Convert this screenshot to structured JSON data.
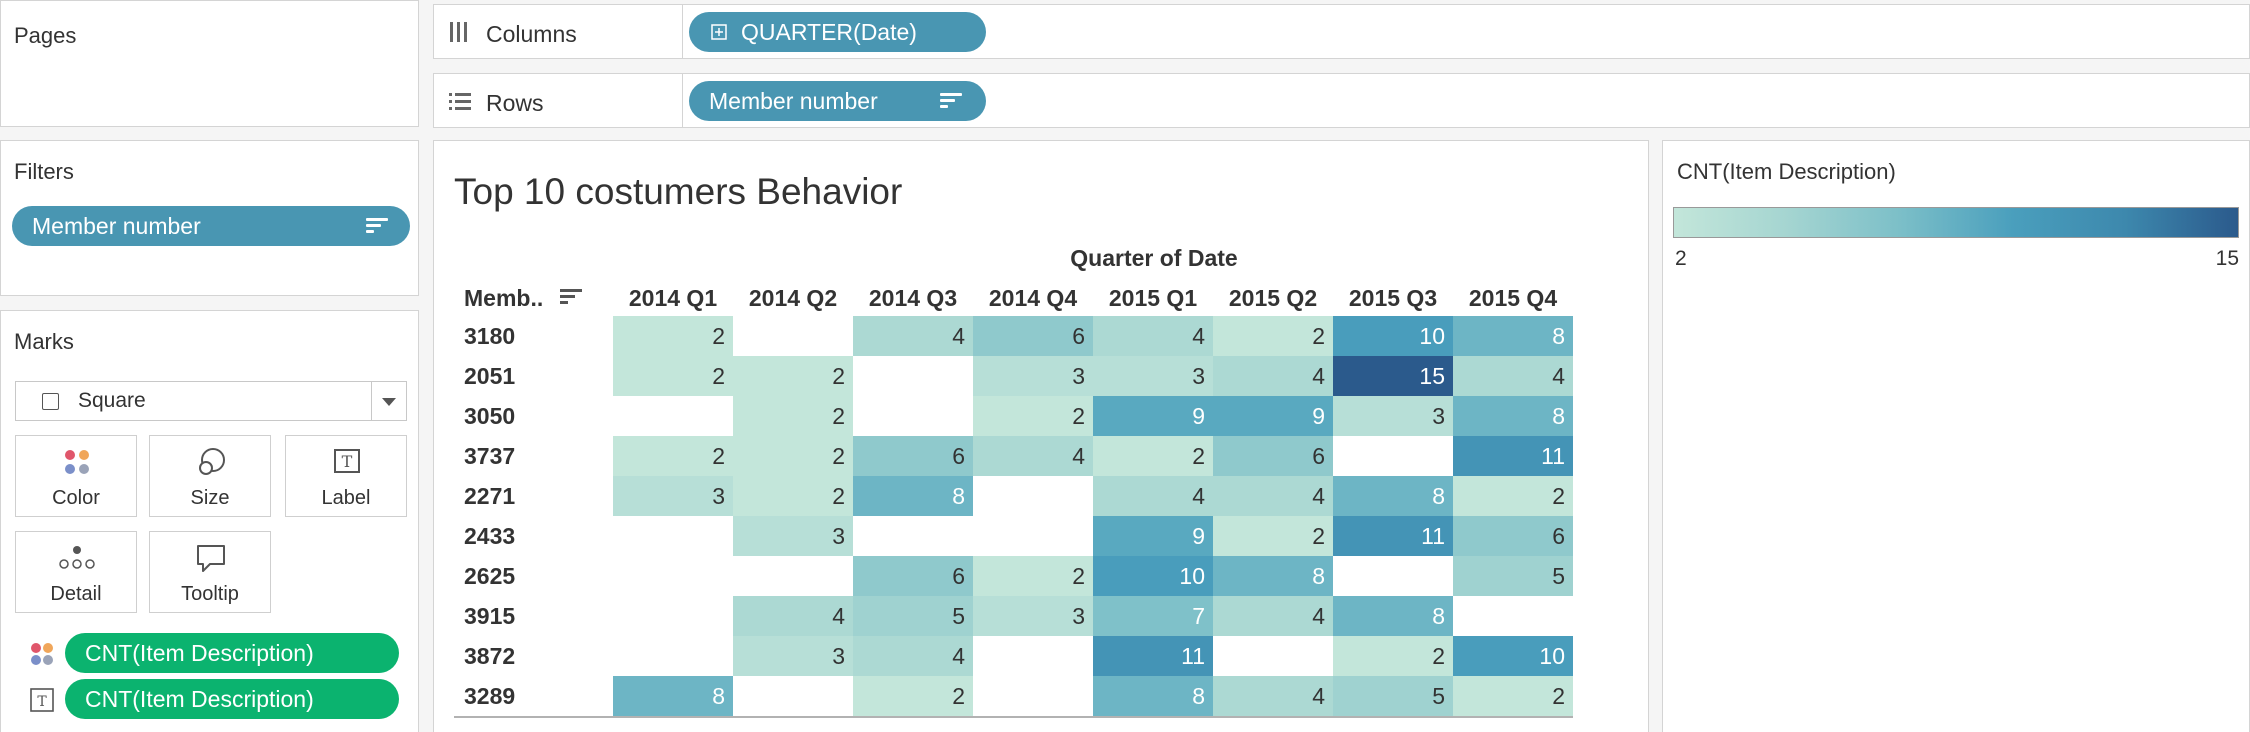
{
  "pages": {
    "title": "Pages"
  },
  "filters": {
    "title": "Filters",
    "pill": "Member number"
  },
  "marks": {
    "title": "Marks",
    "type": "Square",
    "buttons": {
      "color": "Color",
      "size": "Size",
      "label": "Label",
      "detail": "Detail",
      "tooltip": "Tooltip"
    },
    "fields": [
      {
        "label": "CNT(Item Description)",
        "icon": "color-icon"
      },
      {
        "label": "CNT(Item Description)",
        "icon": "label-icon"
      }
    ]
  },
  "shelves": {
    "columns": {
      "label": "Columns",
      "pill": "QUARTER(Date)"
    },
    "rows": {
      "label": "Rows",
      "pill": "Member number"
    }
  },
  "legend": {
    "title": "CNT(Item Description)",
    "min": "2",
    "max": "15",
    "color_low": "#c3e6da",
    "color_high": "#2b5a8c"
  },
  "chart_data": {
    "type": "heatmap",
    "title": "Top 10 costumers Behavior",
    "column_header": "Quarter of Date",
    "row_header": "Memb..",
    "columns": [
      "2014 Q1",
      "2014 Q2",
      "2014 Q3",
      "2014 Q4",
      "2015 Q1",
      "2015 Q2",
      "2015 Q3",
      "2015 Q4"
    ],
    "rows": [
      "3180",
      "2051",
      "3050",
      "3737",
      "2271",
      "2433",
      "2625",
      "3915",
      "3872",
      "3289"
    ],
    "values": [
      [
        2,
        null,
        4,
        6,
        4,
        2,
        10,
        8
      ],
      [
        2,
        2,
        null,
        3,
        3,
        4,
        15,
        4
      ],
      [
        null,
        2,
        null,
        2,
        9,
        9,
        3,
        8
      ],
      [
        2,
        2,
        6,
        4,
        2,
        6,
        null,
        11
      ],
      [
        3,
        2,
        8,
        null,
        4,
        4,
        8,
        2
      ],
      [
        null,
        3,
        null,
        null,
        9,
        2,
        11,
        6
      ],
      [
        null,
        null,
        6,
        2,
        10,
        8,
        null,
        5
      ],
      [
        null,
        4,
        5,
        3,
        7,
        4,
        8,
        null
      ],
      [
        null,
        3,
        4,
        null,
        11,
        null,
        2,
        10
      ],
      [
        8,
        null,
        2,
        null,
        8,
        4,
        5,
        2
      ]
    ],
    "color_range": [
      2,
      15
    ]
  }
}
